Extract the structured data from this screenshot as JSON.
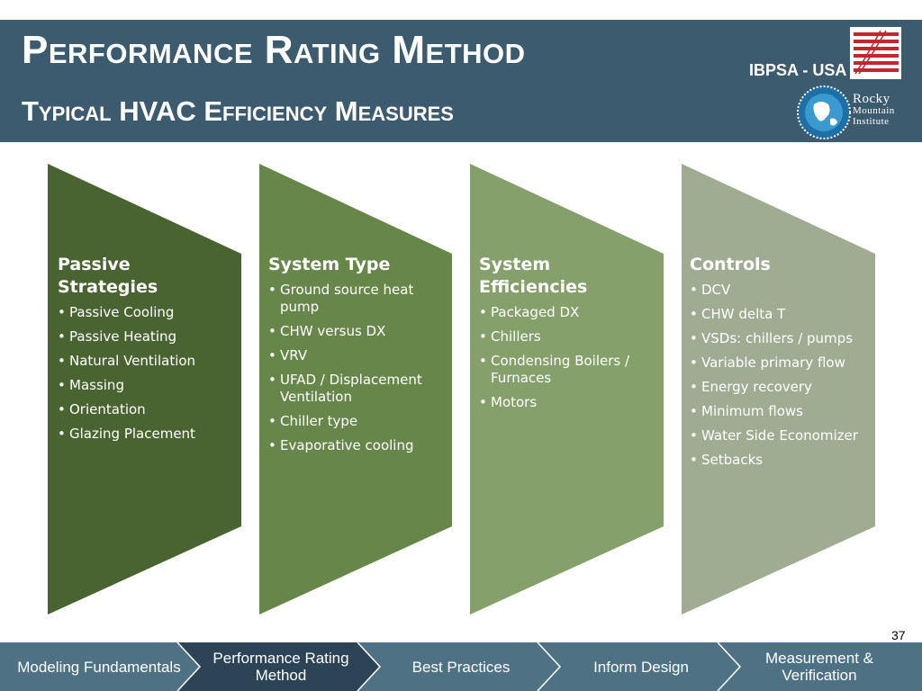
{
  "header": {
    "title": "Performance Rating Method",
    "subtitle": "Typical HVAC Efficiency Measures",
    "ibpsa": "IBPSA - USA",
    "rmi_line1": "Rocky",
    "rmi_line2": "Mountain",
    "rmi_line3": "Institute"
  },
  "columns": [
    {
      "title": "Passive Strategies",
      "color": "#4a6431",
      "items": [
        "Passive Cooling",
        "Passive Heating",
        "Natural Ventilation",
        "Massing",
        "Orientation",
        "Glazing Placement"
      ]
    },
    {
      "title": "System Type",
      "color": "#67874a",
      "items": [
        "Ground source heat pump",
        "CHW versus DX",
        "VRV",
        "UFAD / Displacement Ventilation",
        "Chiller type",
        " Evaporative cooling"
      ]
    },
    {
      "title": "System Efficiencies",
      "color": "#85a06a",
      "items": [
        "Packaged DX",
        "Chillers",
        "Condensing Boilers / Furnaces",
        " Motors"
      ]
    },
    {
      "title": "Controls",
      "color": "#a0ac92",
      "items": [
        "DCV",
        "CHW delta T",
        "VSDs: chillers / pumps",
        "Variable primary flow",
        "Energy recovery",
        "Minimum flows",
        "Water Side Economizer",
        "Setbacks"
      ]
    }
  ],
  "page_number": "37",
  "nav": [
    {
      "label": "Modeling Fundamentals",
      "active": false
    },
    {
      "label": "Performance Rating Method",
      "active": true
    },
    {
      "label": "Best Practices",
      "active": false
    },
    {
      "label": "Inform Design",
      "active": false
    },
    {
      "label": "Measurement & Verification",
      "active": false
    }
  ],
  "colors": {
    "header_bg": "#3c5b6f",
    "nav_bg": "#4e7284",
    "nav_active": "#2c4455"
  }
}
